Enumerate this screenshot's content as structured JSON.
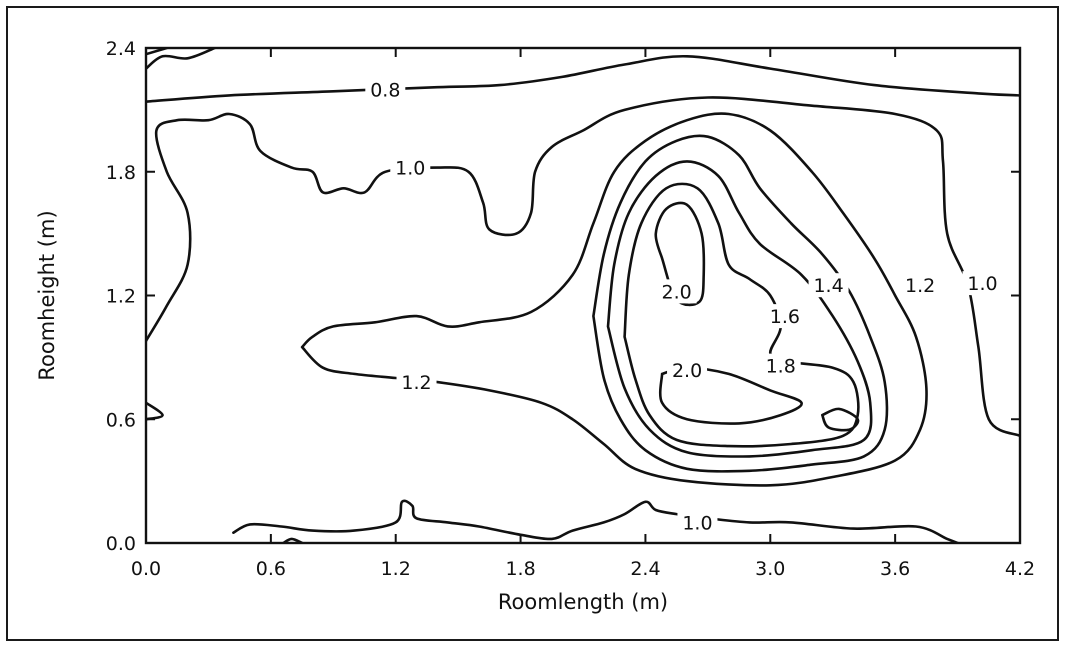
{
  "chart_data": {
    "type": "contour",
    "title": "",
    "xlabel": "Roomlength  (m)",
    "ylabel": "Roomheight  (m)",
    "xlim": [
      0.0,
      4.2
    ],
    "ylim": [
      0.0,
      2.4
    ],
    "x_ticks": [
      "0.0",
      "0.6",
      "1.2",
      "1.8",
      "2.4",
      "3.0",
      "3.6",
      "4.2"
    ],
    "y_ticks": [
      "0.0",
      "0.6",
      "1.2",
      "1.8",
      "2.4"
    ],
    "grid": false,
    "levels": [
      {
        "level": 0.8,
        "label": "0.8",
        "lines": [
          [
            [
              0.0,
              2.14
            ],
            [
              0.4,
              2.17
            ],
            [
              0.9,
              2.19
            ],
            [
              1.4,
              2.21
            ],
            [
              1.7,
              2.22
            ],
            [
              2.0,
              2.26
            ],
            [
              2.3,
              2.32
            ],
            [
              2.6,
              2.36
            ],
            [
              3.0,
              2.3
            ],
            [
              3.5,
              2.22
            ],
            [
              4.0,
              2.18
            ],
            [
              4.2,
              2.17
            ]
          ],
          [
            [
              0.0,
              2.3
            ],
            [
              0.08,
              2.36
            ],
            [
              0.2,
              2.35
            ],
            [
              0.33,
              2.4
            ]
          ],
          [
            [
              0.0,
              2.37
            ],
            [
              0.1,
              2.4
            ]
          ]
        ]
      },
      {
        "level": 1.0,
        "label": "1.0",
        "lines": [
          [
            [
              0.0,
              0.98
            ],
            [
              0.1,
              1.15
            ],
            [
              0.2,
              1.35
            ],
            [
              0.2,
              1.6
            ],
            [
              0.1,
              1.8
            ],
            [
              0.05,
              2.0
            ],
            [
              0.15,
              2.05
            ],
            [
              0.3,
              2.05
            ],
            [
              0.4,
              2.08
            ],
            [
              0.5,
              2.03
            ],
            [
              0.55,
              1.9
            ],
            [
              0.7,
              1.82
            ],
            [
              0.8,
              1.8
            ],
            [
              0.85,
              1.7
            ],
            [
              0.95,
              1.72
            ],
            [
              1.05,
              1.7
            ],
            [
              1.15,
              1.8
            ],
            [
              1.4,
              1.82
            ],
            [
              1.55,
              1.8
            ],
            [
              1.62,
              1.65
            ],
            [
              1.65,
              1.52
            ],
            [
              1.78,
              1.5
            ],
            [
              1.85,
              1.6
            ],
            [
              1.87,
              1.8
            ],
            [
              1.95,
              1.92
            ],
            [
              2.1,
              2.0
            ],
            [
              2.3,
              2.1
            ],
            [
              2.7,
              2.16
            ],
            [
              3.2,
              2.12
            ],
            [
              3.6,
              2.08
            ],
            [
              3.8,
              2.0
            ],
            [
              3.83,
              1.85
            ],
            [
              3.85,
              1.5
            ],
            [
              3.95,
              1.25
            ],
            [
              4.0,
              0.95
            ],
            [
              4.05,
              0.6
            ],
            [
              4.2,
              0.52
            ]
          ],
          [
            [
              0.0,
              0.68
            ],
            [
              0.08,
              0.62
            ],
            [
              0.0,
              0.6
            ]
          ],
          [
            [
              0.42,
              0.05
            ],
            [
              0.5,
              0.09
            ],
            [
              0.65,
              0.08
            ],
            [
              0.8,
              0.06
            ],
            [
              1.0,
              0.06
            ],
            [
              1.2,
              0.1
            ],
            [
              1.23,
              0.2
            ],
            [
              1.28,
              0.18
            ],
            [
              1.3,
              0.12
            ],
            [
              1.45,
              0.1
            ],
            [
              1.6,
              0.08
            ],
            [
              1.8,
              0.04
            ],
            [
              1.95,
              0.02
            ],
            [
              2.05,
              0.06
            ],
            [
              2.2,
              0.1
            ],
            [
              2.3,
              0.14
            ],
            [
              2.4,
              0.2
            ],
            [
              2.45,
              0.16
            ],
            [
              2.55,
              0.14
            ],
            [
              2.7,
              0.12
            ],
            [
              2.9,
              0.1
            ],
            [
              3.1,
              0.1
            ],
            [
              3.4,
              0.07
            ],
            [
              3.7,
              0.08
            ],
            [
              3.85,
              0.02
            ],
            [
              3.9,
              0.0
            ]
          ],
          [
            [
              0.66,
              0.0
            ],
            [
              0.7,
              0.02
            ],
            [
              0.75,
              0.0
            ]
          ]
        ]
      },
      {
        "level": 1.2,
        "label": "1.2",
        "lines": [
          [
            [
              0.75,
              0.95
            ],
            [
              0.85,
              0.85
            ],
            [
              1.0,
              0.82
            ],
            [
              1.2,
              0.8
            ],
            [
              1.4,
              0.78
            ],
            [
              1.65,
              0.74
            ],
            [
              1.9,
              0.68
            ],
            [
              2.05,
              0.6
            ],
            [
              2.2,
              0.48
            ],
            [
              2.35,
              0.36
            ],
            [
              2.6,
              0.3
            ],
            [
              3.0,
              0.28
            ],
            [
              3.3,
              0.32
            ],
            [
              3.6,
              0.4
            ],
            [
              3.72,
              0.55
            ],
            [
              3.75,
              0.75
            ],
            [
              3.7,
              1.0
            ],
            [
              3.6,
              1.2
            ],
            [
              3.5,
              1.38
            ],
            [
              3.35,
              1.6
            ],
            [
              3.2,
              1.8
            ],
            [
              3.0,
              2.0
            ],
            [
              2.8,
              2.08
            ],
            [
              2.6,
              2.05
            ],
            [
              2.4,
              1.95
            ],
            [
              2.25,
              1.8
            ],
            [
              2.15,
              1.55
            ],
            [
              2.05,
              1.3
            ],
            [
              1.85,
              1.12
            ],
            [
              1.6,
              1.07
            ],
            [
              1.45,
              1.05
            ],
            [
              1.3,
              1.1
            ],
            [
              1.1,
              1.07
            ],
            [
              0.9,
              1.05
            ],
            [
              0.8,
              1.0
            ],
            [
              0.75,
              0.95
            ]
          ]
        ]
      },
      {
        "level": 1.4,
        "label": "1.4",
        "lines": [
          [
            [
              2.15,
              1.1
            ],
            [
              2.2,
              1.4
            ],
            [
              2.28,
              1.65
            ],
            [
              2.4,
              1.85
            ],
            [
              2.55,
              1.95
            ],
            [
              2.7,
              1.97
            ],
            [
              2.85,
              1.88
            ],
            [
              2.95,
              1.72
            ],
            [
              3.1,
              1.55
            ],
            [
              3.25,
              1.4
            ],
            [
              3.38,
              1.22
            ],
            [
              3.48,
              1.0
            ],
            [
              3.55,
              0.78
            ],
            [
              3.55,
              0.55
            ],
            [
              3.45,
              0.42
            ],
            [
              3.2,
              0.38
            ],
            [
              2.9,
              0.35
            ],
            [
              2.6,
              0.36
            ],
            [
              2.4,
              0.45
            ],
            [
              2.28,
              0.6
            ],
            [
              2.2,
              0.8
            ],
            [
              2.15,
              1.1
            ]
          ]
        ]
      },
      {
        "level": 1.6,
        "label": "1.6",
        "lines": [
          [
            [
              2.22,
              1.05
            ],
            [
              2.25,
              1.35
            ],
            [
              2.32,
              1.6
            ],
            [
              2.45,
              1.78
            ],
            [
              2.6,
              1.85
            ],
            [
              2.75,
              1.78
            ],
            [
              2.85,
              1.6
            ],
            [
              2.95,
              1.45
            ],
            [
              3.15,
              1.3
            ],
            [
              3.3,
              1.1
            ],
            [
              3.42,
              0.88
            ],
            [
              3.48,
              0.68
            ],
            [
              3.45,
              0.5
            ],
            [
              3.2,
              0.45
            ],
            [
              2.9,
              0.42
            ],
            [
              2.6,
              0.44
            ],
            [
              2.42,
              0.55
            ],
            [
              2.3,
              0.75
            ],
            [
              2.22,
              1.05
            ]
          ]
        ]
      },
      {
        "level": 1.8,
        "label": "1.8",
        "lines": [
          [
            [
              2.3,
              1.0
            ],
            [
              2.32,
              1.3
            ],
            [
              2.38,
              1.55
            ],
            [
              2.5,
              1.72
            ],
            [
              2.65,
              1.72
            ],
            [
              2.75,
              1.55
            ],
            [
              2.8,
              1.35
            ],
            [
              2.9,
              1.28
            ],
            [
              3.0,
              1.2
            ],
            [
              3.05,
              1.05
            ],
            [
              3.0,
              0.92
            ],
            [
              3.08,
              0.88
            ],
            [
              3.3,
              0.85
            ],
            [
              3.4,
              0.78
            ],
            [
              3.42,
              0.62
            ],
            [
              3.35,
              0.52
            ],
            [
              3.1,
              0.48
            ],
            [
              2.8,
              0.47
            ],
            [
              2.55,
              0.5
            ],
            [
              2.42,
              0.62
            ],
            [
              2.35,
              0.8
            ],
            [
              2.3,
              1.0
            ]
          ]
        ]
      },
      {
        "level": 2.0,
        "label": "2.0",
        "lines": [
          [
            [
              2.48,
              1.38
            ],
            [
              2.45,
              1.5
            ],
            [
              2.5,
              1.62
            ],
            [
              2.6,
              1.64
            ],
            [
              2.67,
              1.5
            ],
            [
              2.68,
              1.3
            ],
            [
              2.66,
              1.17
            ],
            [
              2.55,
              1.18
            ],
            [
              2.48,
              1.38
            ]
          ],
          [
            [
              2.48,
              0.82
            ],
            [
              2.6,
              0.85
            ],
            [
              2.8,
              0.82
            ],
            [
              3.0,
              0.74
            ],
            [
              3.15,
              0.68
            ],
            [
              3.05,
              0.62
            ],
            [
              2.85,
              0.58
            ],
            [
              2.6,
              0.6
            ],
            [
              2.48,
              0.68
            ],
            [
              2.48,
              0.82
            ]
          ],
          [
            [
              3.25,
              0.62
            ],
            [
              3.33,
              0.65
            ],
            [
              3.42,
              0.6
            ],
            [
              3.38,
              0.55
            ],
            [
              3.28,
              0.56
            ],
            [
              3.25,
              0.62
            ]
          ]
        ]
      }
    ],
    "labels": [
      {
        "text": "0.8",
        "x": 1.15,
        "y": 2.2
      },
      {
        "text": "1.0",
        "x": 1.27,
        "y": 1.82
      },
      {
        "text": "1.2",
        "x": 1.3,
        "y": 0.78
      },
      {
        "text": "2.0",
        "x": 2.55,
        "y": 1.22
      },
      {
        "text": "1.6",
        "x": 3.07,
        "y": 1.1
      },
      {
        "text": "1.4",
        "x": 3.28,
        "y": 1.25
      },
      {
        "text": "1.2",
        "x": 3.72,
        "y": 1.25
      },
      {
        "text": "1.0",
        "x": 4.02,
        "y": 1.26
      },
      {
        "text": "2.0",
        "x": 2.6,
        "y": 0.84
      },
      {
        "text": "1.8",
        "x": 3.05,
        "y": 0.86
      },
      {
        "text": "1.0",
        "x": 2.65,
        "y": 0.1
      }
    ]
  }
}
